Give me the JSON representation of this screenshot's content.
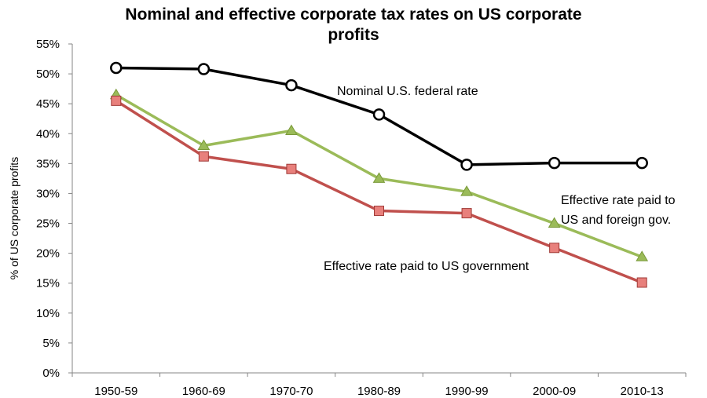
{
  "chart_data": {
    "type": "line",
    "title": "Nominal and effective corporate tax rates on US corporate profits",
    "xlabel": "",
    "ylabel": "% of US corporate profits",
    "ylim": [
      0,
      55
    ],
    "yticks": [
      "0%",
      "5%",
      "10%",
      "15%",
      "20%",
      "25%",
      "30%",
      "35%",
      "40%",
      "45%",
      "50%",
      "55%"
    ],
    "grid": false,
    "categories": [
      "1950-59",
      "1960-69",
      "1970-70",
      "1980-89",
      "1990-99",
      "2000-09",
      "2010-13"
    ],
    "series": [
      {
        "name": "Nominal U.S. federal rate",
        "values": [
          51.0,
          50.8,
          48.1,
          43.2,
          34.8,
          35.1,
          35.1
        ],
        "color": "#000000",
        "marker": "circle"
      },
      {
        "name": "Effective rate paid to US and foreign gov.",
        "values": [
          46.5,
          38.0,
          40.5,
          32.5,
          30.3,
          25.0,
          19.4
        ],
        "color": "#9bbb59",
        "marker": "triangle"
      },
      {
        "name": "Effective rate paid to US government",
        "values": [
          45.5,
          36.2,
          34.1,
          27.1,
          26.7,
          20.9,
          15.1
        ],
        "color": "#c0504d",
        "marker": "square"
      }
    ],
    "annotations": {
      "nominal": "Nominal U.S. federal rate",
      "foreign_line1": "Effective rate paid to",
      "foreign_line2": "US and foreign gov.",
      "us": "Effective rate paid to US government"
    }
  }
}
